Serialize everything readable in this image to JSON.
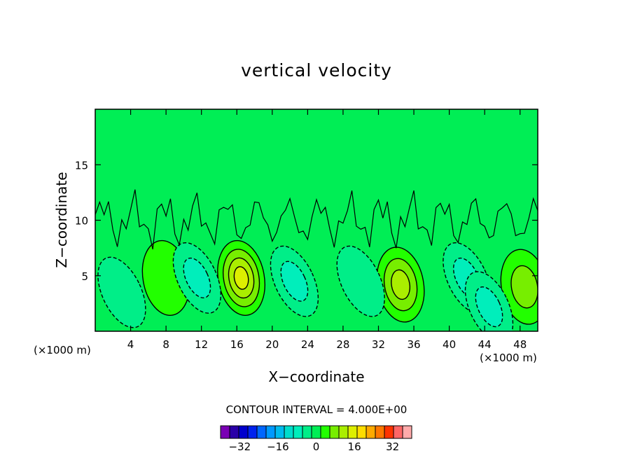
{
  "chart_data": {
    "type": "heatmap",
    "title": "vertical velocity",
    "xlabel": "X−coordinate",
    "ylabel": "Z−coordinate",
    "x_unit": "(×1000 m)",
    "xlim": [
      0,
      50
    ],
    "ylim": [
      0,
      20
    ],
    "x_ticks": [
      4,
      8,
      12,
      16,
      20,
      24,
      28,
      32,
      36,
      40,
      44,
      48
    ],
    "y_ticks": [
      5,
      10,
      15
    ],
    "contour_interval_label": "CONTOUR INTERVAL = 4.000E+00",
    "contour_interval": 4.0,
    "background_level": 0,
    "colorbar": {
      "levels": [
        -40,
        -36,
        -32,
        -28,
        -24,
        -20,
        -16,
        -12,
        -8,
        -4,
        0,
        4,
        8,
        12,
        16,
        20,
        24,
        28,
        32,
        36,
        40
      ],
      "colors": [
        "#7a00b4",
        "#2a00a8",
        "#0000cc",
        "#0022ee",
        "#0066ff",
        "#0099ff",
        "#00bbee",
        "#00ddcc",
        "#00eebb",
        "#00ee88",
        "#00ee55",
        "#22ff00",
        "#77ee00",
        "#aaee00",
        "#ddee00",
        "#ffdd00",
        "#ffaa00",
        "#ff7700",
        "#ff3300",
        "#ff6666",
        "#ffaaaa"
      ],
      "tick_labels": [
        "−32",
        "−16",
        "0",
        "16",
        "32"
      ],
      "tick_values": [
        -32,
        -16,
        0,
        16,
        32
      ]
    },
    "features": [
      {
        "x": 16.5,
        "z": 4.8,
        "value": 16,
        "sign": "positive"
      },
      {
        "x": 34.5,
        "z": 4.2,
        "value": 12,
        "sign": "positive"
      },
      {
        "x": 48.5,
        "z": 4.0,
        "value": 8,
        "sign": "positive"
      },
      {
        "x": 8.0,
        "z": 4.8,
        "value": 4,
        "sign": "positive"
      },
      {
        "x": 11.5,
        "z": 4.8,
        "value": -8,
        "sign": "negative"
      },
      {
        "x": 22.5,
        "z": 4.5,
        "value": -8,
        "sign": "negative"
      },
      {
        "x": 30.0,
        "z": 4.5,
        "value": -4,
        "sign": "negative"
      },
      {
        "x": 42.0,
        "z": 4.8,
        "value": -8,
        "sign": "negative"
      },
      {
        "x": 44.5,
        "z": 2.2,
        "value": -8,
        "sign": "negative"
      },
      {
        "x": 3.0,
        "z": 3.5,
        "value": -4,
        "sign": "negative"
      }
    ]
  }
}
